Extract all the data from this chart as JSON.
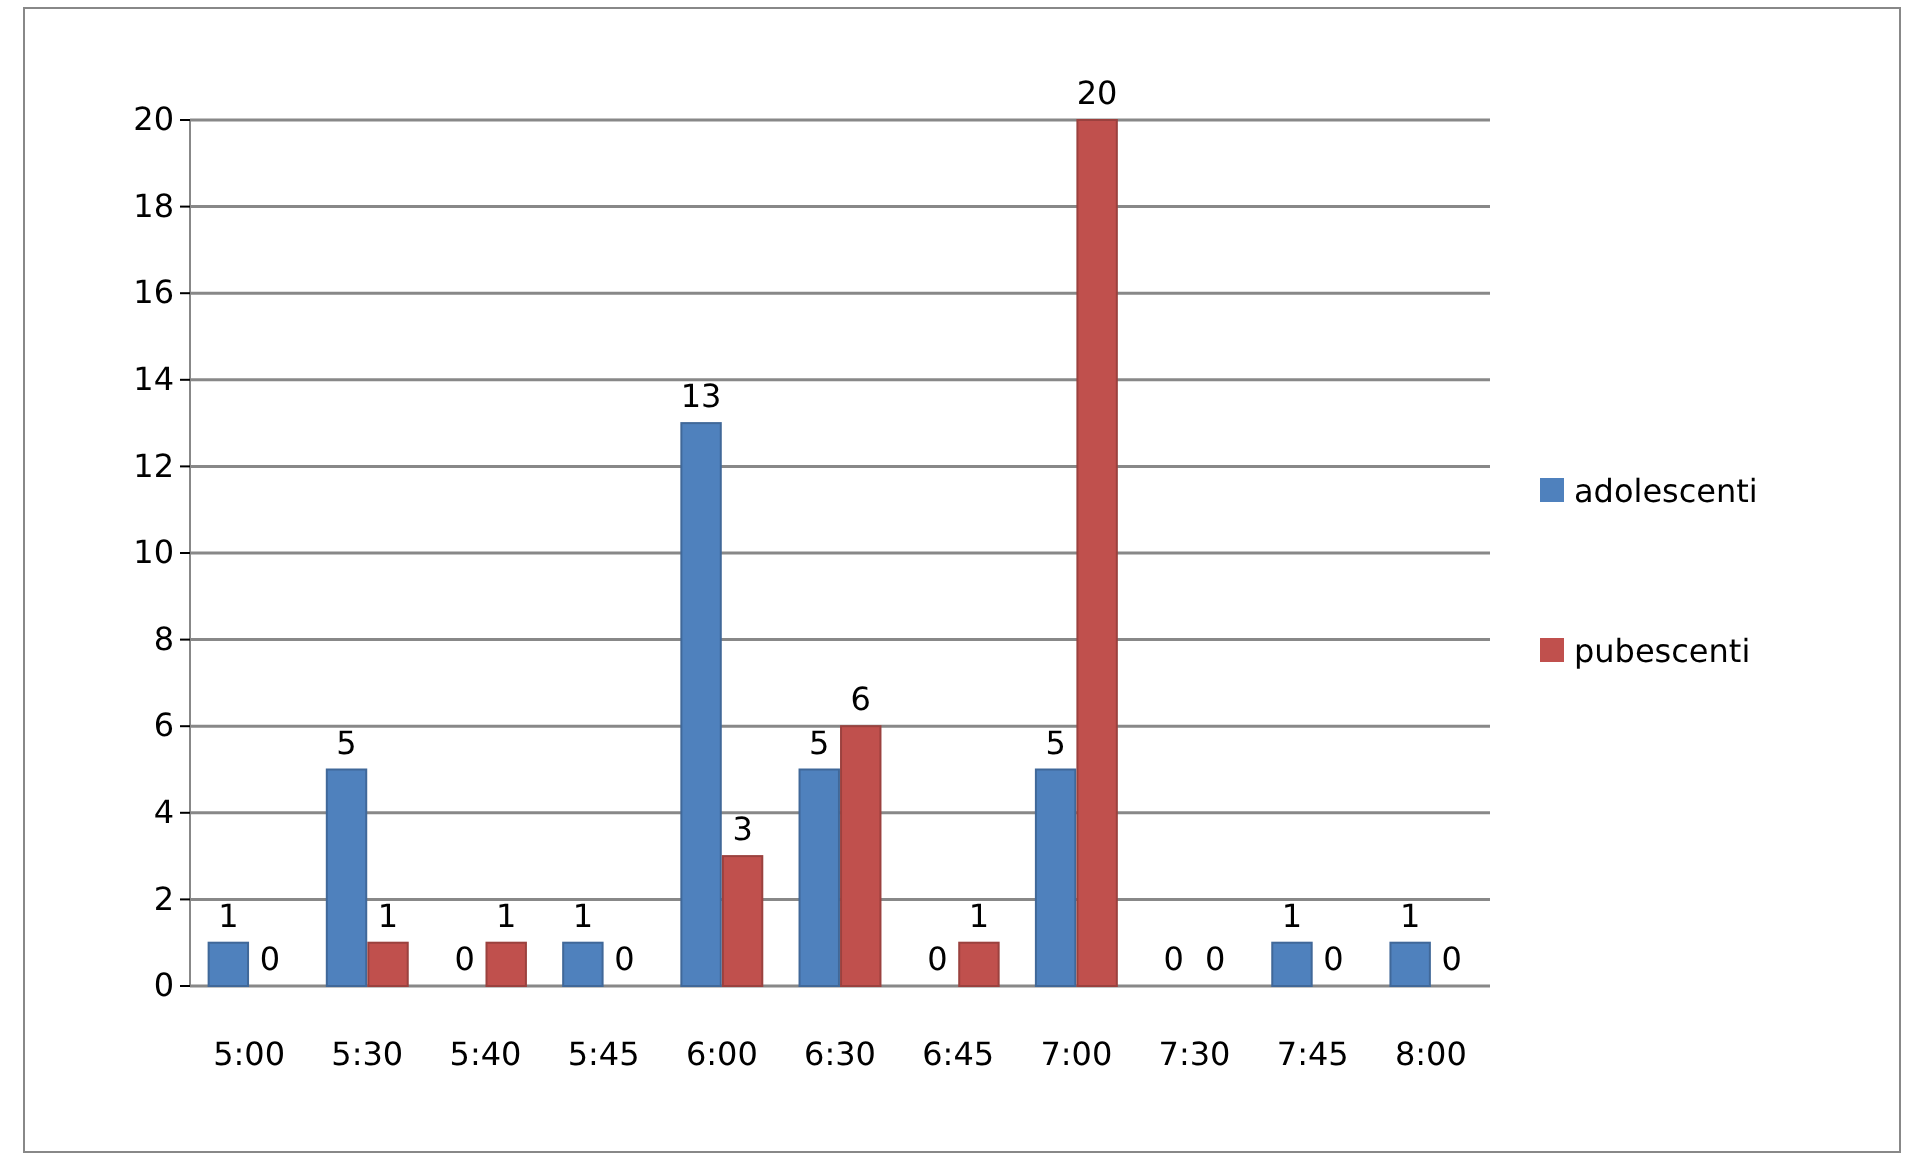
{
  "chart_data": {
    "type": "bar",
    "categories": [
      "5:00",
      "5:30",
      "5:40",
      "5:45",
      "6:00",
      "6:30",
      "6:45",
      "7:00",
      "7:30",
      "7:45",
      "8:00"
    ],
    "series": [
      {
        "name": "adolescenti",
        "color": "#4f81bd",
        "values": [
          1,
          5,
          0,
          1,
          13,
          5,
          0,
          5,
          0,
          1,
          1
        ]
      },
      {
        "name": "pubescenti",
        "color": "#c0504d",
        "values": [
          0,
          1,
          1,
          0,
          3,
          6,
          1,
          20,
          0,
          0,
          0
        ]
      }
    ],
    "ylim": [
      0,
      20
    ],
    "yticks": [
      0,
      2,
      4,
      6,
      8,
      10,
      12,
      14,
      16,
      18,
      20
    ],
    "grid": "y",
    "legend": "right",
    "data_labels": true
  }
}
